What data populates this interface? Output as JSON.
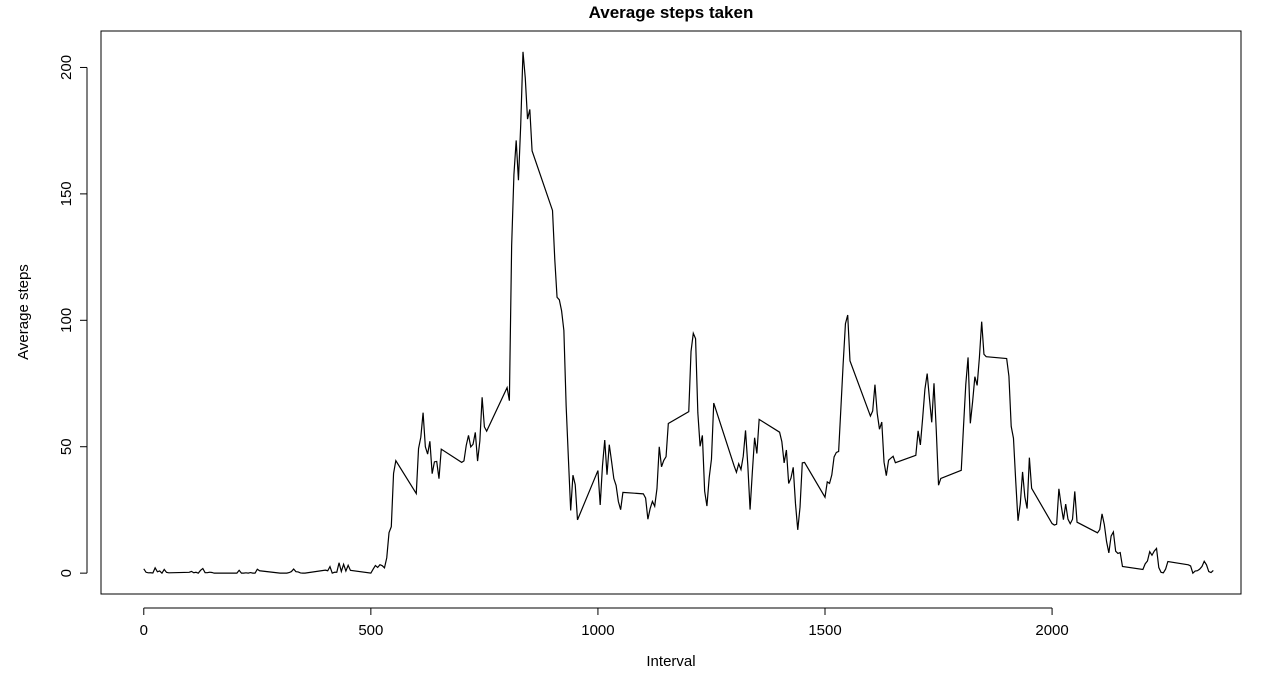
{
  "chart_data": {
    "type": "line",
    "title": "Average steps taken",
    "x_label": "Interval",
    "y_label": "Average steps",
    "xlim": [
      -94.2,
      2416
    ],
    "ylim": [
      -8.25,
      214.42
    ],
    "xticks": [
      0,
      500,
      1000,
      1500,
      2000
    ],
    "yticks": [
      0,
      50,
      100,
      150,
      200
    ],
    "x": [
      0,
      5,
      10,
      15,
      20,
      25,
      30,
      35,
      40,
      45,
      50,
      55,
      100,
      105,
      110,
      115,
      120,
      125,
      130,
      135,
      140,
      145,
      150,
      155,
      200,
      205,
      210,
      215,
      220,
      225,
      230,
      235,
      240,
      245,
      250,
      255,
      300,
      305,
      310,
      315,
      320,
      325,
      330,
      335,
      340,
      345,
      350,
      355,
      400,
      405,
      410,
      415,
      420,
      425,
      430,
      435,
      440,
      445,
      450,
      455,
      500,
      505,
      510,
      515,
      520,
      525,
      530,
      535,
      540,
      545,
      550,
      555,
      600,
      605,
      610,
      615,
      620,
      625,
      630,
      635,
      640,
      645,
      650,
      655,
      700,
      705,
      710,
      715,
      720,
      725,
      730,
      735,
      740,
      745,
      750,
      755,
      800,
      805,
      810,
      815,
      820,
      825,
      830,
      835,
      840,
      845,
      850,
      855,
      900,
      905,
      910,
      915,
      920,
      925,
      930,
      935,
      940,
      945,
      950,
      955,
      1000,
      1005,
      1010,
      1015,
      1020,
      1025,
      1030,
      1035,
      1040,
      1045,
      1050,
      1055,
      1100,
      1105,
      1110,
      1115,
      1120,
      1125,
      1130,
      1135,
      1140,
      1145,
      1150,
      1155,
      1200,
      1205,
      1210,
      1215,
      1220,
      1225,
      1230,
      1235,
      1240,
      1245,
      1250,
      1255,
      1300,
      1305,
      1310,
      1315,
      1320,
      1325,
      1330,
      1335,
      1340,
      1345,
      1350,
      1355,
      1400,
      1405,
      1410,
      1415,
      1420,
      1425,
      1430,
      1435,
      1440,
      1445,
      1450,
      1455,
      1500,
      1505,
      1510,
      1515,
      1520,
      1525,
      1530,
      1535,
      1540,
      1545,
      1550,
      1555,
      1600,
      1605,
      1610,
      1615,
      1620,
      1625,
      1630,
      1635,
      1640,
      1645,
      1650,
      1655,
      1700,
      1705,
      1710,
      1715,
      1720,
      1725,
      1730,
      1735,
      1740,
      1745,
      1750,
      1755,
      1800,
      1805,
      1810,
      1815,
      1820,
      1825,
      1830,
      1835,
      1840,
      1845,
      1850,
      1855,
      1900,
      1905,
      1910,
      1915,
      1920,
      1925,
      1930,
      1935,
      1940,
      1945,
      1950,
      1955,
      2000,
      2005,
      2010,
      2015,
      2020,
      2025,
      2030,
      2035,
      2040,
      2045,
      2050,
      2055,
      2100,
      2105,
      2110,
      2115,
      2120,
      2125,
      2130,
      2135,
      2140,
      2145,
      2150,
      2155,
      2200,
      2205,
      2210,
      2215,
      2220,
      2225,
      2230,
      2235,
      2240,
      2245,
      2250,
      2255,
      2300,
      2305,
      2310,
      2315,
      2320,
      2325,
      2330,
      2335,
      2340,
      2345,
      2350,
      2355
    ],
    "series": [
      {
        "color": "#000000",
        "values": [
          1.72,
          0.34,
          0.13,
          0.15,
          0.08,
          2.09,
          0.53,
          0.87,
          0,
          1.47,
          0.3,
          0.13,
          0.32,
          0.68,
          0.15,
          0.34,
          0,
          1.11,
          1.83,
          0.17,
          0.17,
          0.38,
          0.26,
          0,
          0,
          0,
          1.13,
          0,
          0,
          0.13,
          0,
          0.23,
          0,
          0,
          1.55,
          0.94,
          0,
          0,
          0,
          0,
          0.21,
          0.62,
          1.62,
          0.58,
          0.49,
          0.08,
          0,
          0,
          1.19,
          0.94,
          2.57,
          0,
          0.34,
          0.36,
          4.11,
          0.66,
          3.49,
          0.83,
          3.11,
          1.11,
          0,
          1.57,
          3,
          2.25,
          3.32,
          2.96,
          2.09,
          6.06,
          16.02,
          18.34,
          39.45,
          44.49,
          31.49,
          49.26,
          53.77,
          63.45,
          49.96,
          47.08,
          52.15,
          39.34,
          44.02,
          44.17,
          37.36,
          49.04,
          43.81,
          44.38,
          50.51,
          54.51,
          49.92,
          50.98,
          55.68,
          44.32,
          52.26,
          69.55,
          57.85,
          56.15,
          73.38,
          68.21,
          129.43,
          157.53,
          171.15,
          155.4,
          177.3,
          206.17,
          195.92,
          179.57,
          183.4,
          167.02,
          143.45,
          124.04,
          109.11,
          108.11,
          103.72,
          95.97,
          66.21,
          45.23,
          24.79,
          38.75,
          34.98,
          21.06,
          40.57,
          26.98,
          42.42,
          52.66,
          38.92,
          50.79,
          44.28,
          37.42,
          34.7,
          28.34,
          25.09,
          31.94,
          31.36,
          29.68,
          21.32,
          25.55,
          28.38,
          26.47,
          33.43,
          49.98,
          42.04,
          44.6,
          46.04,
          59.19,
          63.87,
          87.7,
          94.85,
          92.77,
          63.4,
          50.17,
          54.47,
          32.42,
          26.53,
          37.74,
          45.06,
          67.28,
          42.34,
          39.89,
          43.26,
          40.98,
          46.25,
          56.43,
          42.75,
          25.13,
          39.96,
          53.55,
          47.32,
          60.81,
          55.75,
          51.96,
          43.58,
          48.7,
          35.47,
          37.55,
          41.85,
          27.51,
          17.11,
          26.08,
          43.62,
          43.77,
          30.02,
          36.08,
          35.49,
          38.85,
          45.96,
          47.75,
          48.13,
          65.32,
          82.91,
          98.66,
          102.11,
          83.96,
          62.13,
          64.13,
          74.55,
          63.17,
          56.91,
          59.77,
          43.87,
          38.57,
          44.66,
          45.45,
          46.21,
          43.68,
          46.62,
          56.3,
          50.72,
          61.23,
          72.72,
          78.94,
          68.94,
          59.66,
          75.09,
          56.51,
          34.77,
          37.45,
          40.68,
          58.02,
          74.7,
          85.32,
          59.26,
          67.77,
          77.7,
          74.25,
          85.34,
          99.45,
          86.58,
          85.6,
          84.87,
          77.83,
          58.04,
          53.36,
          36.32,
          20.72,
          27.4,
          40.02,
          30.21,
          25.55,
          45.66,
          33.53,
          19.62,
          19.02,
          19.34,
          33.34,
          26.81,
          21.17,
          27.3,
          21.34,
          19.55,
          21.32,
          32.3,
          20.15,
          15.94,
          17.23,
          23.45,
          19.25,
          12.45,
          8.02,
          14.66,
          16.3,
          8.68,
          7.79,
          8.13,
          2.62,
          1.45,
          3.68,
          4.81,
          8.51,
          7.08,
          8.7,
          9.75,
          2.21,
          0.32,
          0.11,
          1.6,
          4.6,
          3.3,
          2.85,
          0,
          0.83,
          0.96,
          1.58,
          2.6,
          4.7,
          3.3,
          0.64,
          0.23,
          1.08
        ]
      }
    ]
  }
}
